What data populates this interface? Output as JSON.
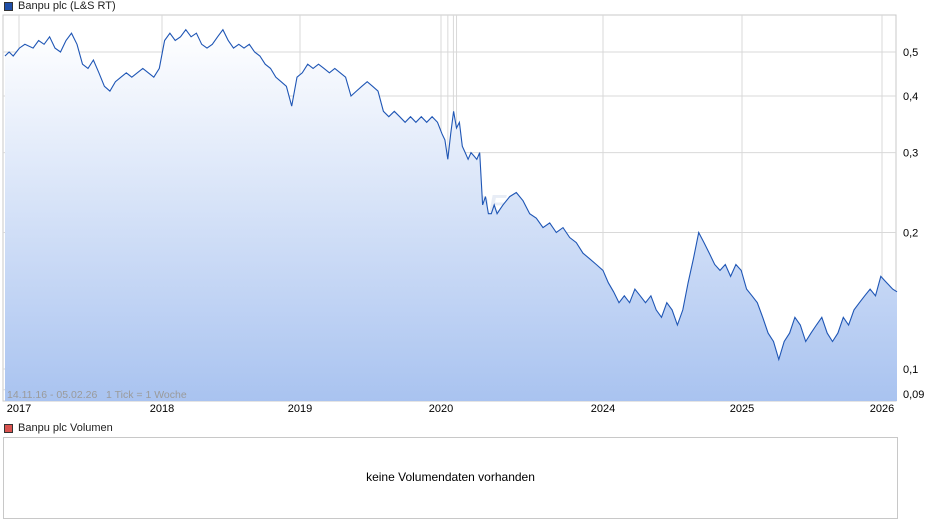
{
  "colors": {
    "line": "#1f56b5",
    "fill_top": "#ffffff",
    "fill_bottom": "#a9c3f0",
    "grid": "#d9d9d9",
    "price_legend_swatch": "#1f4fa8",
    "volume_legend_swatch": "#d9534f",
    "watermark": "#e8edf6"
  },
  "price_panel": {
    "legend_label": "Banpu plc (L&S RT)",
    "info_text": "14.11.16 - 05.02.26   1 Tick = 1 Woche",
    "watermark_text": "ARIVA.DE"
  },
  "volume_panel": {
    "legend_label": "Banpu plc Volumen",
    "message": "keine Volumendaten vorhanden"
  },
  "chart_data": {
    "type": "area",
    "series": [
      {
        "name": "Banpu plc (L&S RT)",
        "points": [
          [
            "2016-11-14",
            0.49
          ],
          [
            "2016-11-28",
            0.5
          ],
          [
            "2016-12-12",
            0.49
          ],
          [
            "2017-01-02",
            0.51
          ],
          [
            "2017-01-16",
            0.52
          ],
          [
            "2017-02-06",
            0.51
          ],
          [
            "2017-02-20",
            0.53
          ],
          [
            "2017-03-06",
            0.52
          ],
          [
            "2017-03-20",
            0.54
          ],
          [
            "2017-04-03",
            0.51
          ],
          [
            "2017-04-17",
            0.5
          ],
          [
            "2017-05-01",
            0.53
          ],
          [
            "2017-05-15",
            0.55
          ],
          [
            "2017-05-29",
            0.52
          ],
          [
            "2017-06-12",
            0.47
          ],
          [
            "2017-06-26",
            0.46
          ],
          [
            "2017-07-10",
            0.48
          ],
          [
            "2017-07-24",
            0.45
          ],
          [
            "2017-08-07",
            0.42
          ],
          [
            "2017-08-21",
            0.41
          ],
          [
            "2017-09-04",
            0.43
          ],
          [
            "2017-09-18",
            0.44
          ],
          [
            "2017-10-02",
            0.45
          ],
          [
            "2017-10-16",
            0.44
          ],
          [
            "2017-10-30",
            0.45
          ],
          [
            "2017-11-13",
            0.46
          ],
          [
            "2017-11-27",
            0.45
          ],
          [
            "2017-12-11",
            0.44
          ],
          [
            "2017-12-25",
            0.46
          ],
          [
            "2018-01-08",
            0.53
          ],
          [
            "2018-01-22",
            0.55
          ],
          [
            "2018-02-05",
            0.53
          ],
          [
            "2018-02-19",
            0.54
          ],
          [
            "2018-03-05",
            0.56
          ],
          [
            "2018-03-19",
            0.54
          ],
          [
            "2018-04-02",
            0.55
          ],
          [
            "2018-04-16",
            0.52
          ],
          [
            "2018-04-30",
            0.51
          ],
          [
            "2018-05-14",
            0.52
          ],
          [
            "2018-05-28",
            0.54
          ],
          [
            "2018-06-11",
            0.56
          ],
          [
            "2018-06-25",
            0.53
          ],
          [
            "2018-07-09",
            0.51
          ],
          [
            "2018-07-23",
            0.52
          ],
          [
            "2018-08-06",
            0.51
          ],
          [
            "2018-08-20",
            0.52
          ],
          [
            "2018-09-03",
            0.5
          ],
          [
            "2018-09-17",
            0.49
          ],
          [
            "2018-10-01",
            0.47
          ],
          [
            "2018-10-15",
            0.46
          ],
          [
            "2018-10-29",
            0.44
          ],
          [
            "2018-11-12",
            0.43
          ],
          [
            "2018-11-26",
            0.42
          ],
          [
            "2018-12-10",
            0.38
          ],
          [
            "2018-12-24",
            0.44
          ],
          [
            "2019-01-07",
            0.45
          ],
          [
            "2019-01-21",
            0.47
          ],
          [
            "2019-02-04",
            0.46
          ],
          [
            "2019-02-18",
            0.47
          ],
          [
            "2019-03-04",
            0.46
          ],
          [
            "2019-03-18",
            0.45
          ],
          [
            "2019-04-01",
            0.46
          ],
          [
            "2019-04-15",
            0.45
          ],
          [
            "2019-04-29",
            0.44
          ],
          [
            "2019-05-13",
            0.4
          ],
          [
            "2019-05-27",
            0.41
          ],
          [
            "2019-06-10",
            0.42
          ],
          [
            "2019-06-24",
            0.43
          ],
          [
            "2019-07-08",
            0.42
          ],
          [
            "2019-07-22",
            0.41
          ],
          [
            "2019-08-05",
            0.37
          ],
          [
            "2019-08-19",
            0.36
          ],
          [
            "2019-09-02",
            0.37
          ],
          [
            "2019-09-16",
            0.36
          ],
          [
            "2019-09-30",
            0.35
          ],
          [
            "2019-10-14",
            0.36
          ],
          [
            "2019-10-28",
            0.35
          ],
          [
            "2019-11-11",
            0.36
          ],
          [
            "2019-11-25",
            0.35
          ],
          [
            "2019-12-09",
            0.36
          ],
          [
            "2019-12-23",
            0.35
          ],
          [
            "2020-01-06",
            0.33
          ],
          [
            "2020-01-20",
            0.32
          ],
          [
            "2020-02-03",
            0.29
          ],
          [
            "2020-02-17",
            0.33
          ],
          [
            "2020-03-02",
            0.37
          ],
          [
            "2020-03-16",
            0.34
          ],
          [
            "2020-03-30",
            0.35
          ],
          [
            "2020-04-13",
            0.31
          ],
          [
            "2020-04-27",
            0.3
          ],
          [
            "2020-05-11",
            0.29
          ],
          [
            "2020-05-25",
            0.3
          ],
          [
            "2020-06-08",
            0.295
          ],
          [
            "2020-06-22",
            0.29
          ],
          [
            "2020-07-06",
            0.3
          ],
          [
            "2020-07-20",
            0.23
          ],
          [
            "2020-08-03",
            0.24
          ],
          [
            "2020-08-17",
            0.22
          ],
          [
            "2020-08-31",
            0.22
          ],
          [
            "2020-09-14",
            0.23
          ],
          [
            "2020-09-28",
            0.22
          ],
          [
            "2020-10-12",
            0.225
          ],
          [
            "2023-06-05",
            0.23
          ],
          [
            "2023-06-19",
            0.24
          ],
          [
            "2023-07-03",
            0.245
          ],
          [
            "2023-07-17",
            0.235
          ],
          [
            "2023-07-31",
            0.22
          ],
          [
            "2023-08-14",
            0.215
          ],
          [
            "2023-08-28",
            0.205
          ],
          [
            "2023-09-11",
            0.21
          ],
          [
            "2023-09-25",
            0.2
          ],
          [
            "2023-10-09",
            0.205
          ],
          [
            "2023-10-23",
            0.195
          ],
          [
            "2023-11-06",
            0.19
          ],
          [
            "2023-11-20",
            0.18
          ],
          [
            "2023-12-04",
            0.175
          ],
          [
            "2023-12-18",
            0.17
          ],
          [
            "2024-01-01",
            0.165
          ],
          [
            "2024-01-15",
            0.155
          ],
          [
            "2024-01-29",
            0.148
          ],
          [
            "2024-02-12",
            0.14
          ],
          [
            "2024-02-26",
            0.145
          ],
          [
            "2024-03-11",
            0.14
          ],
          [
            "2024-03-25",
            0.15
          ],
          [
            "2024-04-08",
            0.145
          ],
          [
            "2024-04-22",
            0.14
          ],
          [
            "2024-05-06",
            0.145
          ],
          [
            "2024-05-20",
            0.135
          ],
          [
            "2024-06-03",
            0.13
          ],
          [
            "2024-06-17",
            0.14
          ],
          [
            "2024-07-01",
            0.135
          ],
          [
            "2024-07-15",
            0.125
          ],
          [
            "2024-07-29",
            0.135
          ],
          [
            "2024-08-12",
            0.155
          ],
          [
            "2024-08-26",
            0.175
          ],
          [
            "2024-09-09",
            0.2
          ],
          [
            "2024-09-23",
            0.19
          ],
          [
            "2024-10-07",
            0.18
          ],
          [
            "2024-10-21",
            0.17
          ],
          [
            "2024-11-04",
            0.165
          ],
          [
            "2024-11-18",
            0.17
          ],
          [
            "2024-12-02",
            0.16
          ],
          [
            "2024-12-16",
            0.17
          ],
          [
            "2024-12-30",
            0.165
          ],
          [
            "2025-01-13",
            0.15
          ],
          [
            "2025-01-27",
            0.145
          ],
          [
            "2025-02-10",
            0.14
          ],
          [
            "2025-02-24",
            0.13
          ],
          [
            "2025-03-10",
            0.12
          ],
          [
            "2025-03-24",
            0.115
          ],
          [
            "2025-04-07",
            0.105
          ],
          [
            "2025-04-21",
            0.115
          ],
          [
            "2025-05-05",
            0.12
          ],
          [
            "2025-05-19",
            0.13
          ],
          [
            "2025-06-02",
            0.125
          ],
          [
            "2025-06-16",
            0.115
          ],
          [
            "2025-06-30",
            0.12
          ],
          [
            "2025-07-14",
            0.125
          ],
          [
            "2025-07-28",
            0.13
          ],
          [
            "2025-08-11",
            0.12
          ],
          [
            "2025-08-25",
            0.115
          ],
          [
            "2025-09-08",
            0.12
          ],
          [
            "2025-09-22",
            0.13
          ],
          [
            "2025-10-06",
            0.125
          ],
          [
            "2025-10-20",
            0.135
          ],
          [
            "2025-11-03",
            0.14
          ],
          [
            "2025-11-17",
            0.145
          ],
          [
            "2025-12-01",
            0.15
          ],
          [
            "2025-12-15",
            0.145
          ],
          [
            "2025-12-29",
            0.16
          ],
          [
            "2026-01-12",
            0.155
          ],
          [
            "2026-01-26",
            0.15
          ],
          [
            "2026-02-05",
            0.148
          ]
        ]
      }
    ],
    "x_axis": {
      "ticks": [
        "2017",
        "2018",
        "2019",
        "2020",
        "2024",
        "2025",
        "2026"
      ],
      "range": [
        "2016-11-14",
        "2026-02-05"
      ],
      "note": "axis is compressed: 2021-2023 are skipped, 2020 segment is followed directly by 2024"
    },
    "y_axis": {
      "scale": "log",
      "ticks": [
        "0,5",
        "0,4",
        "0,3",
        "0,2",
        "0,1",
        "0,09"
      ],
      "tick_values": [
        0.5,
        0.4,
        0.3,
        0.2,
        0.1,
        0.09
      ],
      "range": [
        0.085,
        0.6
      ],
      "position": "right"
    },
    "grid": true,
    "legend_position": "top-left"
  }
}
